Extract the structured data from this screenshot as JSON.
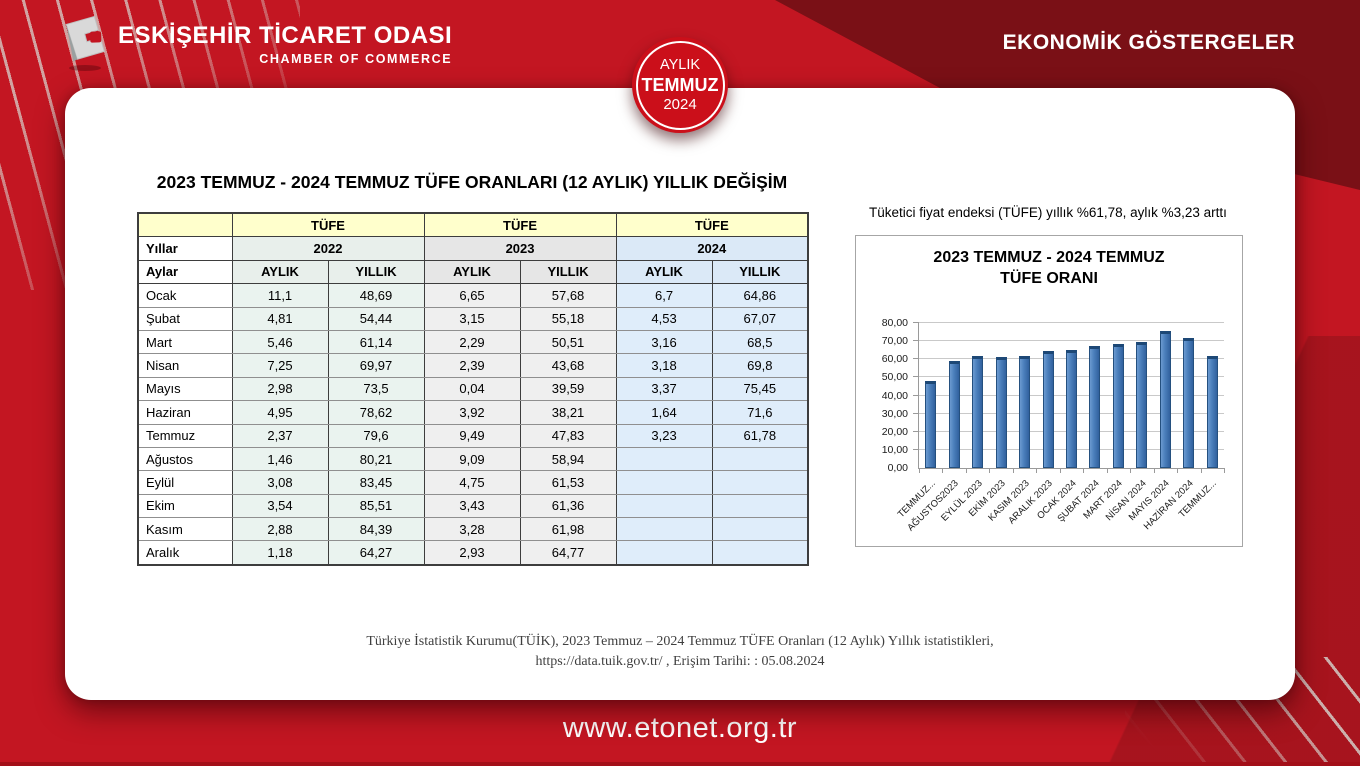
{
  "header": {
    "org_name": "ESKİŞEHİR TİCARET ODASI",
    "org_subtitle": "CHAMBER OF COMMERCE",
    "right_title": "EKONOMİK GÖSTERGELER",
    "badge": {
      "line1": "AYLIK",
      "line2": "TEMMUZ",
      "line3": "2024"
    }
  },
  "main": {
    "table_title": "2023 TEMMUZ - 2024 TEMMUZ TÜFE ORANLARI (12 AYLIK) YILLIK DEĞİŞİM",
    "table": {
      "group_label": "TÜFE",
      "years_label": "Yıllar",
      "months_label": "Aylar",
      "years": [
        "2022",
        "2023",
        "2024"
      ],
      "sub_headers": [
        "AYLIK",
        "YILLIK"
      ],
      "rows": [
        {
          "month": "Ocak",
          "values": [
            "11,1",
            "48,69",
            "6,65",
            "57,68",
            "6,7",
            "64,86"
          ]
        },
        {
          "month": "Şubat",
          "values": [
            "4,81",
            "54,44",
            "3,15",
            "55,18",
            "4,53",
            "67,07"
          ]
        },
        {
          "month": "Mart",
          "values": [
            "5,46",
            "61,14",
            "2,29",
            "50,51",
            "3,16",
            "68,5"
          ]
        },
        {
          "month": "Nisan",
          "values": [
            "7,25",
            "69,97",
            "2,39",
            "43,68",
            "3,18",
            "69,8"
          ]
        },
        {
          "month": "Mayıs",
          "values": [
            "2,98",
            "73,5",
            "0,04",
            "39,59",
            "3,37",
            "75,45"
          ]
        },
        {
          "month": "Haziran",
          "values": [
            "4,95",
            "78,62",
            "3,92",
            "38,21",
            "1,64",
            "71,6"
          ]
        },
        {
          "month": "Temmuz",
          "values": [
            "2,37",
            "79,6",
            "9,49",
            "47,83",
            "3,23",
            "61,78"
          ]
        },
        {
          "month": "Ağustos",
          "values": [
            "1,46",
            "80,21",
            "9,09",
            "58,94",
            "",
            ""
          ]
        },
        {
          "month": "Eylül",
          "values": [
            "3,08",
            "83,45",
            "4,75",
            "61,53",
            "",
            ""
          ]
        },
        {
          "month": "Ekim",
          "values": [
            "3,54",
            "85,51",
            "3,43",
            "61,36",
            "",
            ""
          ]
        },
        {
          "month": "Kasım",
          "values": [
            "2,88",
            "84,39",
            "3,28",
            "61,98",
            "",
            ""
          ]
        },
        {
          "month": "Aralık",
          "values": [
            "1,18",
            "64,27",
            "2,93",
            "64,77",
            "",
            ""
          ]
        }
      ]
    },
    "chart_caption": "Tüketici fiyat endeksi (TÜFE) yıllık %61,78, aylık %3,23 arttı"
  },
  "chart_data": {
    "type": "bar",
    "title": "2023 TEMMUZ - 2024 TEMMUZ TÜFE ORANI",
    "title_lines": [
      "2023 TEMMUZ - 2024 TEMMUZ",
      "TÜFE ORANI"
    ],
    "categories": [
      "TEMMUZ...",
      "AĞUSTOS2023",
      "EYLÜL 2023",
      "EKİM 2023",
      "KASIM 2023",
      "ARALIK 2023",
      "OCAK 2024",
      "ŞUBAT 2024",
      "MART 2024",
      "NİSAN 2024",
      "MAYIS 2024",
      "HAZİRAN 2024",
      "TEMMUZ..."
    ],
    "values": [
      47.83,
      58.94,
      61.53,
      61.36,
      61.98,
      64.77,
      64.86,
      67.07,
      68.5,
      69.8,
      75.45,
      71.6,
      61.78
    ],
    "ylim": [
      0,
      80
    ],
    "ytick_step": 10,
    "ytick_labels": [
      "0,00",
      "10,00",
      "20,00",
      "30,00",
      "40,00",
      "50,00",
      "60,00",
      "70,00",
      "80,00"
    ],
    "grid": true,
    "legend": false,
    "bar_color": "#4a7ebb"
  },
  "footer": {
    "source_line1": "Türkiye İstatistik Kurumu(TÜİK), 2023 Temmuz – 2024 Temmuz TÜFE Oranları (12 Aylık) Yıllık istatistikleri,",
    "source_line2": "https://data.tuik.gov.tr/ , Erişim Tarihi: : 05.08.2024",
    "website": "www.etonet.org.tr"
  },
  "colors": {
    "brand_red": "#c31622",
    "dark_maroon": "#7a1016",
    "badge_red": "#cb0f1a",
    "bar_blue": "#4a7ebb",
    "table_header_cream": "#ffffcc",
    "col_2022": "#eaf3ef",
    "col_2023": "#efefef",
    "col_2024": "#dfedfa"
  }
}
